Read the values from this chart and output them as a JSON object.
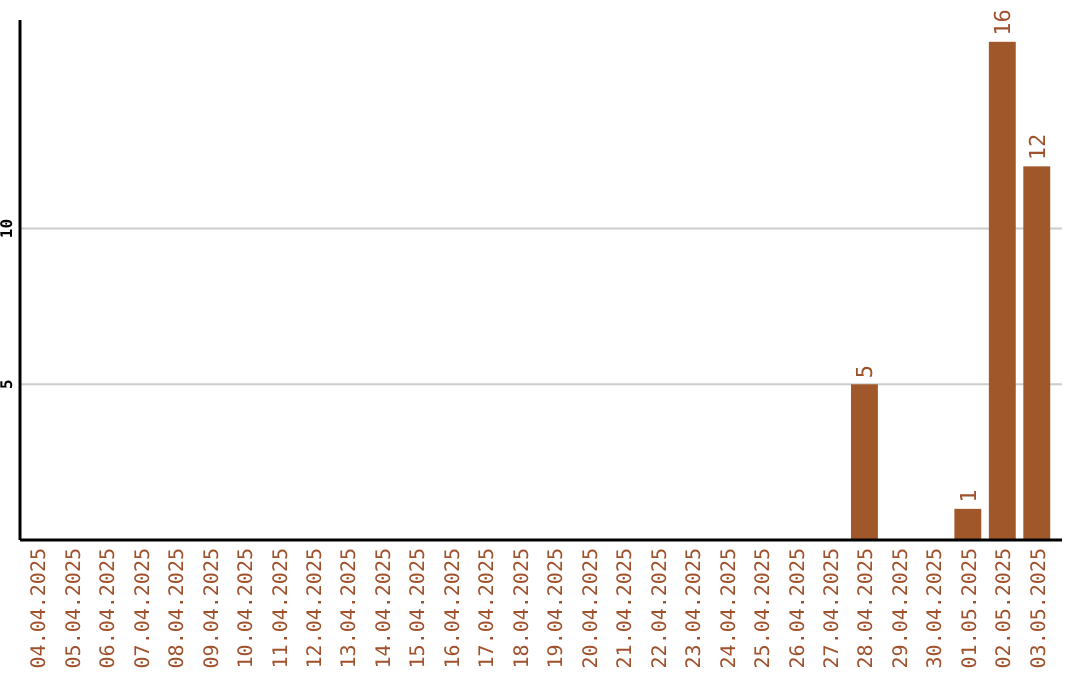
{
  "chart_data": {
    "type": "bar",
    "categories": [
      "04.04.2025",
      "05.04.2025",
      "06.04.2025",
      "07.04.2025",
      "08.04.2025",
      "09.04.2025",
      "10.04.2025",
      "11.04.2025",
      "12.04.2025",
      "13.04.2025",
      "14.04.2025",
      "15.04.2025",
      "16.04.2025",
      "17.04.2025",
      "18.04.2025",
      "19.04.2025",
      "20.04.2025",
      "21.04.2025",
      "22.04.2025",
      "23.04.2025",
      "24.04.2025",
      "25.04.2025",
      "26.04.2025",
      "27.04.2025",
      "28.04.2025",
      "29.04.2025",
      "30.04.2025",
      "01.05.2025",
      "02.05.2025",
      "03.05.2025"
    ],
    "values": [
      0,
      0,
      0,
      0,
      0,
      0,
      0,
      0,
      0,
      0,
      0,
      0,
      0,
      0,
      0,
      0,
      0,
      0,
      0,
      0,
      0,
      0,
      0,
      0,
      5,
      0,
      0,
      1,
      16,
      12
    ],
    "value_labels": [
      null,
      null,
      null,
      null,
      null,
      null,
      null,
      null,
      null,
      null,
      null,
      null,
      null,
      null,
      null,
      null,
      null,
      null,
      null,
      null,
      null,
      null,
      null,
      null,
      "5",
      null,
      null,
      "1",
      "16",
      "12"
    ],
    "color": "#a0572a",
    "ylim": [
      0,
      16.7
    ],
    "yticks": [
      5,
      10
    ],
    "grid": "y"
  }
}
